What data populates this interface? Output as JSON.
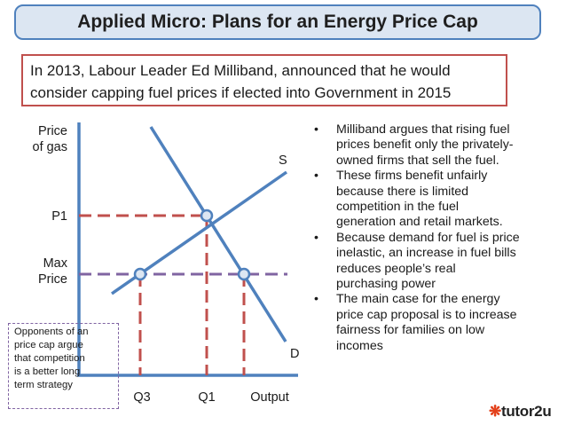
{
  "title": "Applied Micro: Plans for an Energy Price Cap",
  "intro": {
    "line1": "In 2013, Labour Leader Ed Milliband, announced that he would",
    "line2": "consider capping fuel prices if elected into Government in 2015"
  },
  "diagram": {
    "y_axis_label_1": "Price",
    "y_axis_label_2": "of gas",
    "p1_label": "P1",
    "max_price_label_1": "Max",
    "max_price_label_2": "Price",
    "supply_label": "S",
    "demand_label": "D",
    "q3_label": "Q3",
    "q1_label": "Q1",
    "x_axis_label": "Output",
    "colors": {
      "curve": "#4f81bd",
      "p1_line": "#c0504d",
      "max_price_line": "#8064a2",
      "axis": "#4f81bd"
    }
  },
  "bullets": [
    {
      "line1": "Milliband argues that rising fuel",
      "line2": "prices benefit only the privately-",
      "line3": "owned firms that sell the fuel."
    },
    {
      "line1": "These firms benefit unfairly",
      "line2": "because there is limited",
      "line3": "competition in the fuel",
      "line4": "generation and retail markets."
    },
    {
      "line1": "Because demand for fuel is price",
      "line2": "inelastic, an increase in fuel bills",
      "line3": "reduces people’s real",
      "line4": "purchasing power"
    },
    {
      "line1": "The main case for the energy",
      "line2": "price cap proposal is to increase",
      "line3": "fairness for families on low",
      "line4": "incomes"
    }
  ],
  "bullet_symbol": "•",
  "note": {
    "line1": "Opponents of an",
    "line2": "price cap argue",
    "line3": "that competition",
    "line4": "is a better long",
    "line5": "term strategy"
  },
  "logo": {
    "text": "tutor2u",
    "mark": "❋"
  }
}
